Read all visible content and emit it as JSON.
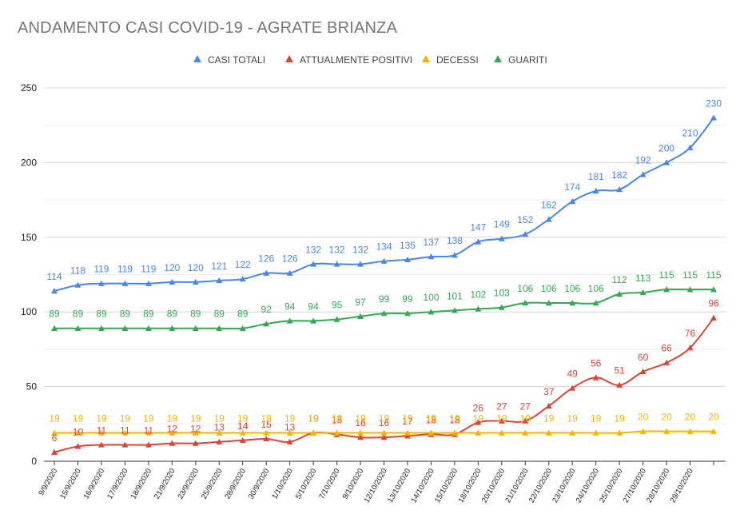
{
  "chart_data": {
    "type": "line",
    "title": "ANDAMENTO CASI COVID-19 - AGRATE BRIANZA",
    "xlabel": "",
    "ylabel": "",
    "ylim": [
      0,
      250
    ],
    "yticks": [
      "0",
      "50",
      "100",
      "150",
      "200",
      "250"
    ],
    "grid": true,
    "legend_position": "top",
    "categories": [
      "9/9/2020",
      "15/9/2020",
      "16/9/2020",
      "17/9/2020",
      "18/9/2020",
      "21/9/2020",
      "23/9/2020",
      "25/9/2020",
      "28/9/2020",
      "30/9/2020",
      "1/10/2020",
      "5/10/2020",
      "7/10/2020",
      "9/10/2020",
      "12/10/2020",
      "13/10/2020",
      "14/10/2020",
      "15/10/2020",
      "18/10/2020",
      "20/10/2020",
      "21/10/2020",
      "22/10/2020",
      "23/10/2020",
      "24/10/2020",
      "25/10/2020",
      "27/10/2020",
      "28/10/2020",
      "29/10/2020",
      ""
    ],
    "series": [
      {
        "name": "CASI TOTALI",
        "color": "#4a86e8",
        "values": [
          114,
          118,
          119,
          119,
          119,
          120,
          120,
          121,
          122,
          126,
          126,
          132,
          132,
          132,
          134,
          135,
          137,
          138,
          147,
          149,
          152,
          162,
          174,
          181,
          182,
          192,
          200,
          210,
          230
        ]
      },
      {
        "name": "ATTUALMENTE POSITIVI",
        "color": "#db4437",
        "values": [
          6,
          10,
          11,
          11,
          11,
          12,
          12,
          13,
          14,
          15,
          13,
          19,
          18,
          16,
          16,
          17,
          18,
          18,
          26,
          27,
          27,
          37,
          49,
          56,
          51,
          60,
          66,
          76,
          96
        ]
      },
      {
        "name": "DECESSI",
        "color": "#f4b400",
        "values": [
          19,
          19,
          19,
          19,
          19,
          19,
          19,
          19,
          19,
          19,
          19,
          19,
          19,
          19,
          19,
          19,
          19,
          19,
          19,
          19,
          19,
          19,
          19,
          19,
          19,
          20,
          20,
          20,
          20
        ]
      },
      {
        "name": "GUARITI",
        "color": "#34a853",
        "values": [
          89,
          89,
          89,
          89,
          89,
          89,
          89,
          89,
          89,
          92,
          94,
          94,
          95,
          97,
          99,
          99,
          100,
          101,
          102,
          103,
          106,
          106,
          106,
          106,
          112,
          113,
          115,
          115,
          115
        ]
      }
    ]
  }
}
